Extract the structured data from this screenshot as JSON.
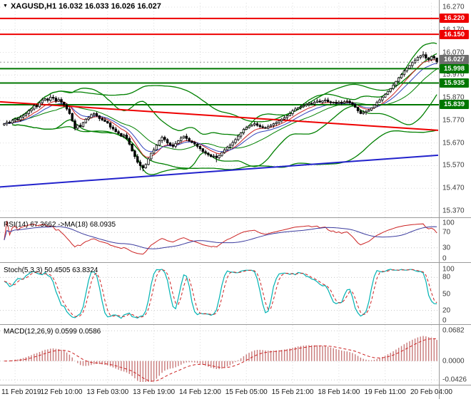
{
  "window": {
    "title": "XAGUSD,H1 16.032 16.033 16.026 16.027"
  },
  "icons": {
    "collapse": "▼"
  },
  "panels": {
    "rsi_label": "RSI(14) 67.3662  ->MA(18) 68.0935",
    "stoch_label": "Stoch(5,3,3) 50.4505 63.8324",
    "macd_label": "MACD(12,26,9) 0.0599 0.0586"
  },
  "chart_data": {
    "type": "candlestick",
    "symbol": "XAGUSD",
    "timeframe": "H1",
    "quote": {
      "open": 16.032,
      "high": 16.033,
      "low": 16.026,
      "close": 16.027
    },
    "closes": [
      15.755,
      15.762,
      15.758,
      15.77,
      15.776,
      15.772,
      15.784,
      15.792,
      15.8,
      15.812,
      15.82,
      15.835,
      15.83,
      15.848,
      15.86,
      15.865,
      15.858,
      15.872,
      15.868,
      15.855,
      15.862,
      15.85,
      15.838,
      15.82,
      15.8,
      15.768,
      15.735,
      15.748,
      15.742,
      15.76,
      15.775,
      15.782,
      15.795,
      15.8,
      15.79,
      15.778,
      15.772,
      15.765,
      15.758,
      15.74,
      15.732,
      15.72,
      15.712,
      15.7,
      15.705,
      15.69,
      15.665,
      15.635,
      15.61,
      15.585,
      15.57,
      15.56,
      15.575,
      15.6,
      15.625,
      15.64,
      15.66,
      15.68,
      15.695,
      15.685,
      15.67,
      15.662,
      15.655,
      15.668,
      15.68,
      15.692,
      15.7,
      15.69,
      15.678,
      15.672,
      15.665,
      15.655,
      15.645,
      15.632,
      15.625,
      15.618,
      15.61,
      15.612,
      15.605,
      15.615,
      15.628,
      15.64,
      15.652,
      15.66,
      15.672,
      15.685,
      15.7,
      15.715,
      15.73,
      15.738,
      15.745,
      15.75,
      15.755,
      15.748,
      15.742,
      15.738,
      15.735,
      15.742,
      15.748,
      15.755,
      15.76,
      15.768,
      15.775,
      15.782,
      15.79,
      15.8,
      15.812,
      15.82,
      15.826,
      15.83,
      15.835,
      15.84,
      15.845,
      15.842,
      15.85,
      15.855,
      15.85,
      15.856,
      15.86,
      15.852,
      15.848,
      15.85,
      15.845,
      15.85,
      15.846,
      15.852,
      15.855,
      15.848,
      15.84,
      15.828,
      15.812,
      15.8,
      15.805,
      15.81,
      15.815,
      15.825,
      15.838,
      15.85,
      15.86,
      15.872,
      15.885,
      15.898,
      15.91,
      15.925,
      15.942,
      15.958,
      15.972,
      15.988,
      16.0,
      16.012,
      16.025,
      16.035,
      16.048,
      16.055,
      16.06,
      16.045,
      16.038,
      16.052,
      16.045,
      16.027
    ],
    "extremes": {
      "highs": {
        "17": 15.885,
        "154": 16.075
      },
      "lows": {
        "50": 15.55,
        "51": 15.545,
        "78": 15.585
      }
    },
    "price_axis_ticks": [
      16.27,
      16.17,
      16.07,
      15.97,
      15.87,
      15.77,
      15.67,
      15.57,
      15.47,
      15.37
    ],
    "levels": [
      {
        "value": 16.22,
        "color": "#ee0000",
        "kind": "resistance"
      },
      {
        "value": 16.15,
        "color": "#ee0000",
        "kind": "resistance"
      },
      {
        "value": 15.998,
        "color": "#007700",
        "kind": "support"
      },
      {
        "value": 15.935,
        "color": "#007700",
        "kind": "support"
      },
      {
        "value": 15.839,
        "color": "#007700",
        "kind": "support"
      }
    ],
    "current_price": {
      "value": 16.027,
      "color": "#6e6e6e"
    },
    "trendlines": [
      {
        "color": "#ee0000",
        "from_price": 15.852,
        "to_price": 15.726
      },
      {
        "color": "#2222cc",
        "from_price": 15.476,
        "to_price": 15.616
      }
    ],
    "time_labels": [
      {
        "text": "11 Feb 2019",
        "i": 4
      },
      {
        "text": "12 Feb 10:00",
        "i": 21
      },
      {
        "text": "13 Feb 03:00",
        "i": 38
      },
      {
        "text": "13 Feb 19:00",
        "i": 55
      },
      {
        "text": "14 Feb 12:00",
        "i": 72
      },
      {
        "text": "15 Feb 05:00",
        "i": 89
      },
      {
        "text": "15 Feb 21:00",
        "i": 106
      },
      {
        "text": "18 Feb 14:00",
        "i": 123
      },
      {
        "text": "19 Feb 11:00",
        "i": 140
      },
      {
        "text": "20 Feb 04:00",
        "i": 157
      }
    ],
    "indicators": {
      "bollinger": {
        "period": 20,
        "deviation": 2,
        "color": "#008000"
      },
      "bollinger_slow": {
        "period": 55,
        "deviation": 2,
        "color": "#008000"
      },
      "ma_fast": {
        "period": 8,
        "color": "#cc2222"
      },
      "ma_slow": {
        "period": 13,
        "color": "#3344bb"
      },
      "rsi": {
        "period": 14,
        "ma_period": 18,
        "value": 67.3662,
        "ma_value": 68.0935,
        "ticks": [
          100,
          70,
          30,
          0
        ],
        "levels": [
          70,
          30
        ],
        "color": "#cc2222",
        "ma_color": "#3b3b9e"
      },
      "stoch": {
        "params": "5,3,3",
        "value": 50.4505,
        "signal": 63.8324,
        "ticks": [
          100,
          80,
          50,
          20,
          0
        ],
        "levels": [
          80,
          20
        ],
        "color": "#00b3b3",
        "signal_color": "#cc2222"
      },
      "macd": {
        "params": "12,26,9",
        "value": 0.0599,
        "signal_value": 0.0586,
        "ticks": [
          {
            "v": 0.0682,
            "t": "0.0682"
          },
          {
            "v": 0,
            "t": "0.0000"
          },
          {
            "v": -0.0426,
            "t": "-0.0426"
          }
        ],
        "hist_color": "#c87a7a",
        "signal_color": "#cc2222"
      }
    }
  }
}
